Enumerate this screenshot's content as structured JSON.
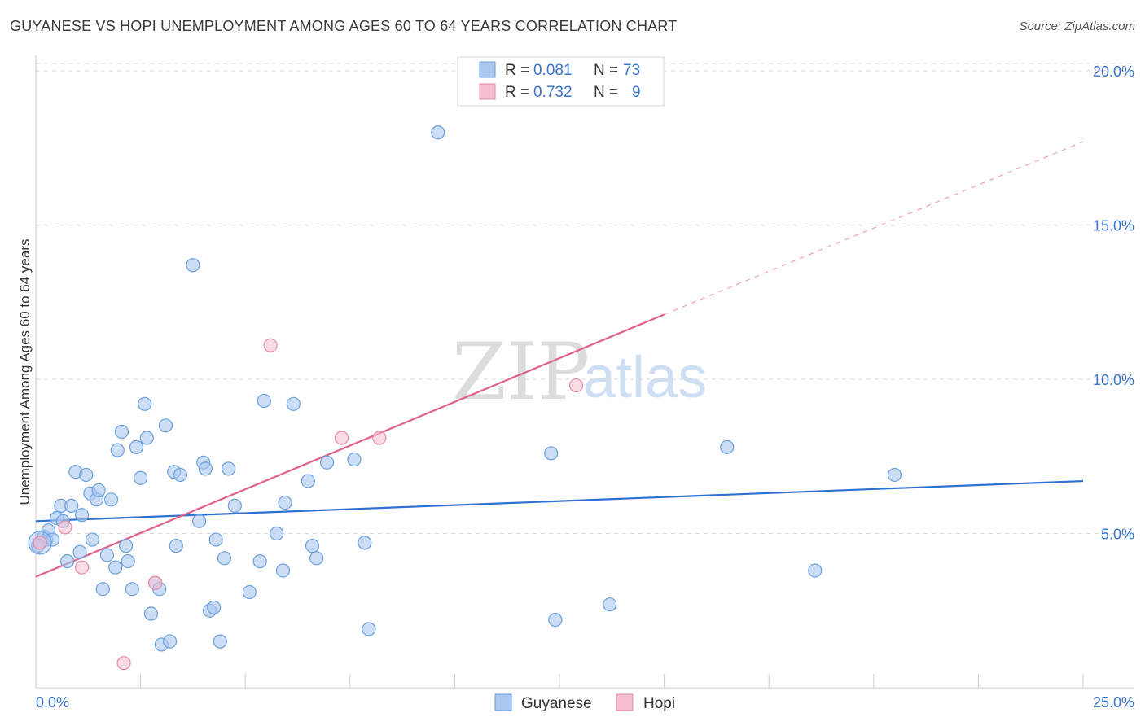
{
  "title": "GUYANESE VS HOPI UNEMPLOYMENT AMONG AGES 60 TO 64 YEARS CORRELATION CHART",
  "source": "Source: ZipAtlas.com",
  "watermark": {
    "zip": "ZIP",
    "atlas": "atlas"
  },
  "legend_top": [
    {
      "r_label": "R =",
      "r_value": "0.081",
      "n_label": "N =",
      "n_value": "73"
    },
    {
      "r_label": "R =",
      "r_value": "0.732",
      "n_label": "N =",
      "n_value": "9"
    }
  ],
  "legend_bottom": [
    "Guyanese",
    "Hopi"
  ],
  "colors": {
    "guyanese_fill": "#aac8f0",
    "guyanese_stroke": "#6a9fdd",
    "guyanese_line": "#2e6fcf",
    "hopi_fill": "#f6bfd0",
    "hopi_stroke": "#e88aa8",
    "hopi_line": "#e0608a",
    "value_text": "#3b73c8",
    "grid": "#d9d9d9"
  },
  "chart_data": {
    "type": "scatter",
    "xlabel": "",
    "ylabel": "Unemployment Among Ages 60 to 64 years",
    "xlim": [
      0,
      25
    ],
    "ylim": [
      0,
      20.5
    ],
    "x_tick_labels": [
      "0.0%",
      "25.0%"
    ],
    "y_tick_values": [
      5,
      10,
      15,
      20
    ],
    "y_tick_labels": [
      "5.0%",
      "10.0%",
      "15.0%",
      "20.0%"
    ],
    "series": [
      {
        "name": "Guyanese",
        "r": 0.081,
        "n": 73,
        "trend": {
          "x0": 0,
          "y0": 5.4,
          "x1": 25,
          "y1": 6.7
        },
        "points": [
          [
            0.1,
            4.7
          ],
          [
            0.2,
            4.9
          ],
          [
            0.25,
            4.8
          ],
          [
            0.3,
            5.1
          ],
          [
            0.4,
            4.8
          ],
          [
            0.5,
            5.5
          ],
          [
            0.6,
            5.9
          ],
          [
            0.65,
            5.4
          ],
          [
            0.75,
            4.1
          ],
          [
            0.85,
            5.9
          ],
          [
            0.95,
            7.0
          ],
          [
            1.05,
            4.4
          ],
          [
            1.1,
            5.6
          ],
          [
            1.2,
            6.9
          ],
          [
            1.3,
            6.3
          ],
          [
            1.35,
            4.8
          ],
          [
            1.45,
            6.1
          ],
          [
            1.5,
            6.4
          ],
          [
            1.6,
            3.2
          ],
          [
            1.7,
            4.3
          ],
          [
            1.8,
            6.1
          ],
          [
            1.9,
            3.9
          ],
          [
            1.95,
            7.7
          ],
          [
            2.05,
            8.3
          ],
          [
            2.15,
            4.6
          ],
          [
            2.2,
            4.1
          ],
          [
            2.3,
            3.2
          ],
          [
            2.4,
            7.8
          ],
          [
            2.5,
            6.8
          ],
          [
            2.6,
            9.2
          ],
          [
            2.65,
            8.1
          ],
          [
            2.75,
            2.4
          ],
          [
            2.85,
            3.4
          ],
          [
            2.95,
            3.2
          ],
          [
            3.0,
            1.4
          ],
          [
            3.1,
            8.5
          ],
          [
            3.2,
            1.5
          ],
          [
            3.3,
            7.0
          ],
          [
            3.35,
            4.6
          ],
          [
            3.45,
            6.9
          ],
          [
            3.75,
            13.7
          ],
          [
            3.9,
            5.4
          ],
          [
            4.0,
            7.3
          ],
          [
            4.05,
            7.1
          ],
          [
            4.15,
            2.5
          ],
          [
            4.25,
            2.6
          ],
          [
            4.3,
            4.8
          ],
          [
            4.4,
            1.5
          ],
          [
            4.5,
            4.2
          ],
          [
            4.6,
            7.1
          ],
          [
            4.75,
            5.9
          ],
          [
            5.1,
            3.1
          ],
          [
            5.35,
            4.1
          ],
          [
            5.45,
            9.3
          ],
          [
            5.75,
            5.0
          ],
          [
            5.9,
            3.8
          ],
          [
            5.95,
            6.0
          ],
          [
            6.15,
            9.2
          ],
          [
            6.5,
            6.7
          ],
          [
            6.6,
            4.6
          ],
          [
            6.7,
            4.2
          ],
          [
            6.95,
            7.3
          ],
          [
            7.6,
            7.4
          ],
          [
            7.85,
            4.7
          ],
          [
            7.95,
            1.9
          ],
          [
            9.6,
            18.0
          ],
          [
            12.3,
            7.6
          ],
          [
            12.4,
            2.2
          ],
          [
            13.7,
            2.7
          ],
          [
            16.5,
            7.8
          ],
          [
            18.6,
            3.8
          ],
          [
            20.5,
            6.9
          ],
          [
            0.05,
            4.6
          ]
        ]
      },
      {
        "name": "Hopi",
        "r": 0.732,
        "n": 9,
        "trend": {
          "x0": 0,
          "y0": 3.6,
          "x1": 15,
          "y1": 12.1
        },
        "trend_dashed": {
          "x0": 15,
          "y0": 12.1,
          "x1": 25,
          "y1": 17.7
        },
        "points": [
          [
            0.1,
            4.7
          ],
          [
            0.7,
            5.2
          ],
          [
            1.1,
            3.9
          ],
          [
            2.1,
            0.8
          ],
          [
            2.85,
            3.4
          ],
          [
            5.6,
            11.1
          ],
          [
            7.3,
            8.1
          ],
          [
            8.2,
            8.1
          ],
          [
            12.9,
            9.8
          ]
        ]
      }
    ]
  }
}
